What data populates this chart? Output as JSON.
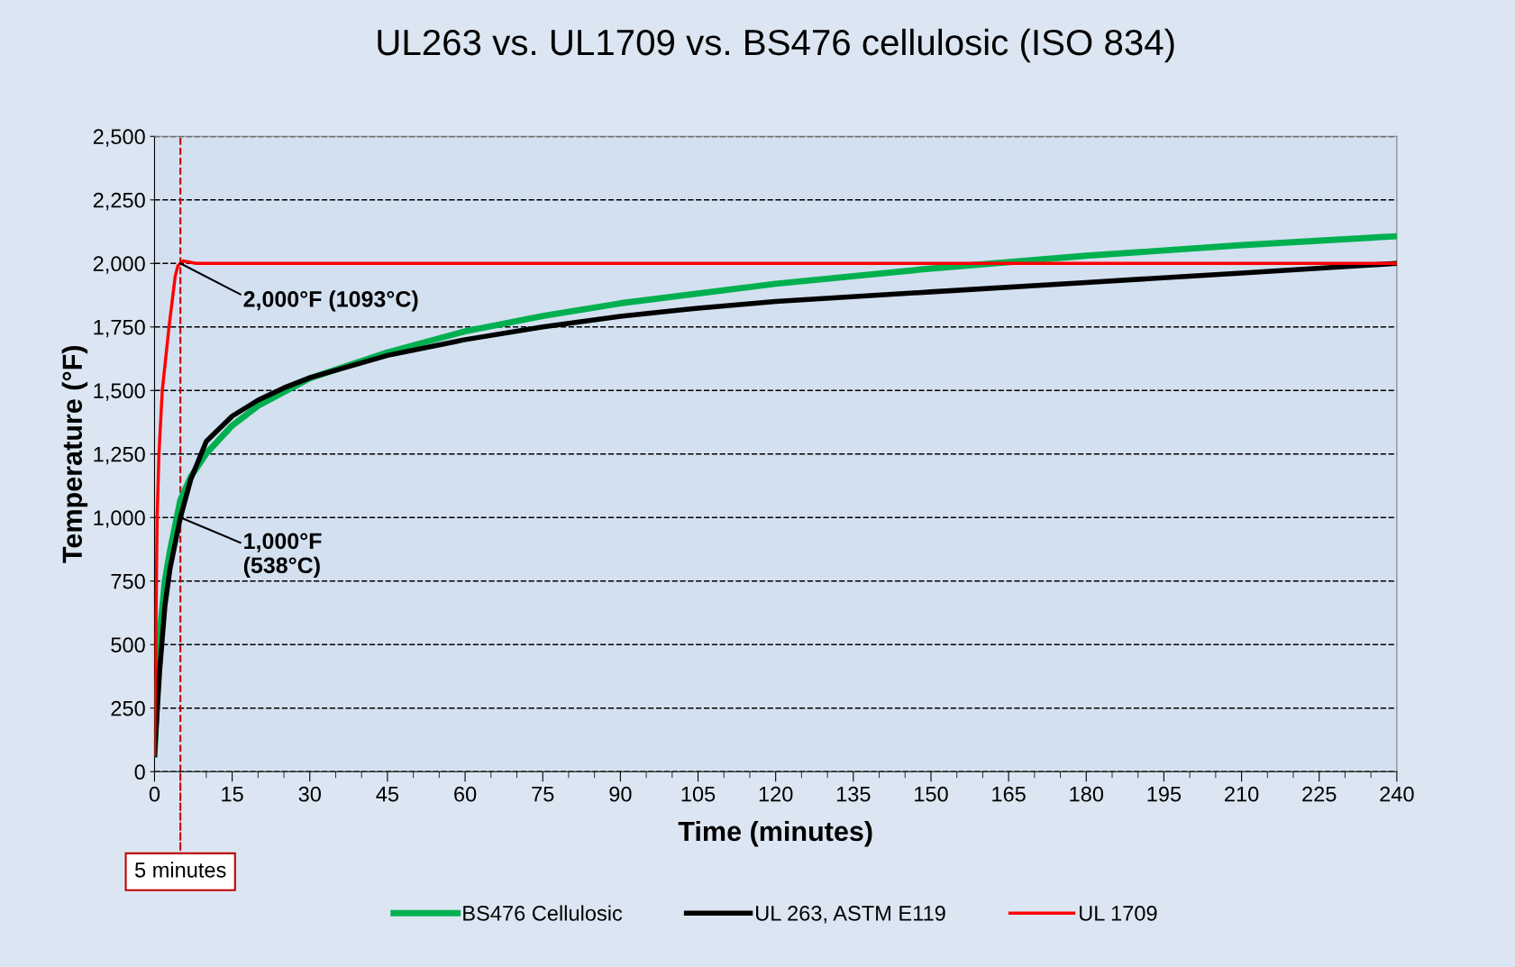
{
  "chart_data": {
    "type": "line",
    "title": "UL263 vs. UL1709 vs. BS476 cellulosic (ISO 834)",
    "xlabel": "Time (minutes)",
    "ylabel": "Temperature (°F)",
    "xlim": [
      0,
      240
    ],
    "xticks": [
      0,
      15,
      30,
      45,
      60,
      75,
      90,
      105,
      120,
      135,
      150,
      165,
      180,
      195,
      210,
      225,
      240
    ],
    "ylim": [
      0,
      2500
    ],
    "yticks": [
      {
        "value": 0,
        "label": "0"
      },
      {
        "value": 250,
        "label": "250"
      },
      {
        "value": 500,
        "label": "500"
      },
      {
        "value": 750,
        "label": "750"
      },
      {
        "value": 1000,
        "label": "1,000"
      },
      {
        "value": 1250,
        "label": "1,250"
      },
      {
        "value": 1500,
        "label": "1,500"
      },
      {
        "value": 1750,
        "label": "1,750"
      },
      {
        "value": 2000,
        "label": "2,000"
      },
      {
        "value": 2250,
        "label": "2,250"
      },
      {
        "value": 2500,
        "label": "2,500"
      }
    ],
    "grid": "y",
    "legend": "bottom",
    "marker": "none",
    "line_style": "solid",
    "series": [
      {
        "name": "BS476 Cellulosic",
        "color": "#00b050",
        "x": [
          0,
          1,
          2,
          3,
          5,
          7,
          10,
          15,
          20,
          30,
          45,
          60,
          75,
          90,
          120,
          150,
          180,
          210,
          240
        ],
        "values": [
          68,
          540,
          750,
          870,
          1069,
          1160,
          1252,
          1362,
          1440,
          1548,
          1650,
          1733,
          1793,
          1843,
          1920,
          1980,
          2030,
          2072,
          2107
        ]
      },
      {
        "name": "UL 263, ASTM E119",
        "color": "#000000",
        "x": [
          0,
          1,
          2,
          3,
          5,
          7,
          10,
          15,
          20,
          25,
          30,
          45,
          60,
          75,
          90,
          105,
          120,
          150,
          180,
          210,
          240
        ],
        "values": [
          68,
          400,
          650,
          800,
          1000,
          1150,
          1300,
          1399,
          1462,
          1510,
          1550,
          1638,
          1700,
          1750,
          1792,
          1824,
          1850,
          1888,
          1925,
          1962,
          2000
        ]
      },
      {
        "name": "UL 1709",
        "color": "#ff0000",
        "x": [
          0,
          0.5,
          0.85,
          1.5,
          2.8,
          4,
          4.5,
          5.5,
          8,
          240
        ],
        "values": [
          68,
          1000,
          1250,
          1500,
          1750,
          1950,
          1990,
          2010,
          2000,
          2000
        ]
      }
    ],
    "ref_lines": [
      {
        "axis": "x",
        "value": 5,
        "label": "5 minutes",
        "color": "#c00000",
        "line_style": "dashed"
      }
    ],
    "annotations": [
      {
        "text": "2,000°F (1093°C)",
        "x": 5,
        "y": 2000
      },
      {
        "text": "1,000°F\n(538°C)",
        "x": 5,
        "y": 1000
      }
    ]
  }
}
